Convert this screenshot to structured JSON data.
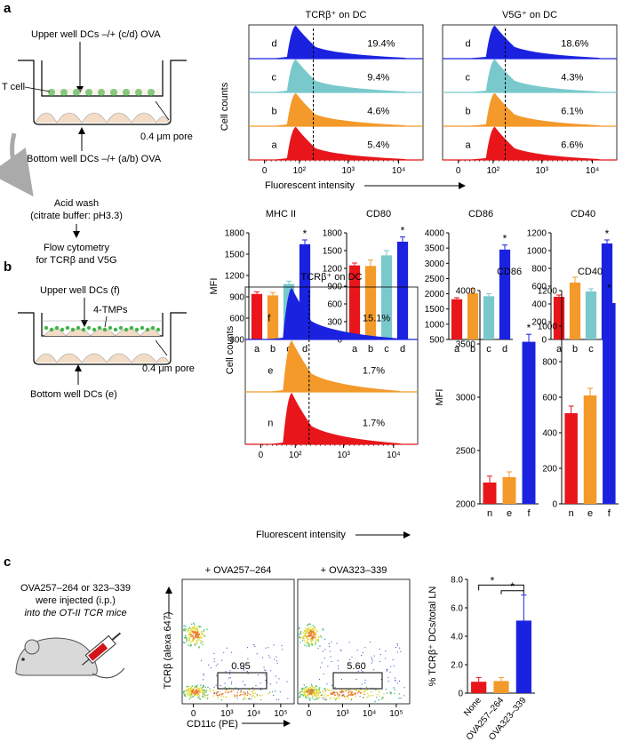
{
  "panel_labels": [
    "a",
    "b",
    "c"
  ],
  "colors": {
    "a": "#e8161b",
    "b": "#f39a2b",
    "c": "#79c9cc",
    "d": "#1a22e0",
    "e": "#f39a2b",
    "f": "#1a22e0",
    "n": "#e8161b"
  },
  "panel_a": {
    "diagram": {
      "upper_label": "Upper well DCs –/+ (c/d) OVA",
      "tcell_label": "T cell",
      "pore_label": "0.4 μm pore",
      "bottom_label": "Bottom well DCs –/+ (a/b) OVA",
      "step1": [
        "Acid wash",
        "(citrate buffer: pH3.3)"
      ],
      "step2": [
        "Flow cytometry",
        "for TCRβ and V5G"
      ]
    },
    "histograms": {
      "ylabel": "Cell counts",
      "xlabel": "Fluorescent intensity",
      "x_ticks": [
        "0",
        "10²",
        "10³",
        "10⁴"
      ],
      "panels": [
        {
          "title": "TCRβ⁺ on DC",
          "rows": [
            {
              "label": "d",
              "pct": "19.4%"
            },
            {
              "label": "c",
              "pct": "9.4%"
            },
            {
              "label": "b",
              "pct": "4.6%"
            },
            {
              "label": "a",
              "pct": "5.4%"
            }
          ]
        },
        {
          "title": "V5G⁺ on DC",
          "rows": [
            {
              "label": "d",
              "pct": "18.6%"
            },
            {
              "label": "c",
              "pct": "4.3%"
            },
            {
              "label": "b",
              "pct": "6.1%"
            },
            {
              "label": "a",
              "pct": "6.6%"
            }
          ]
        }
      ]
    },
    "bar_ylabel": "MFI"
  },
  "panel_b": {
    "diagram": {
      "upper_label": "Upper well DCs (f)",
      "tmp_label": "4-TMPs",
      "pore_label": "0.4 μm pore",
      "bottom_label": "Bottom well DCs (e)"
    },
    "histogram": {
      "title": "TCRβ⁺ on DC",
      "ylabel": "Cell counts",
      "xlabel": "Fluorescent intensity",
      "x_ticks": [
        "0",
        "10²",
        "10³",
        "10⁴"
      ],
      "rows": [
        {
          "label": "f",
          "pct": "15.1%"
        },
        {
          "label": "e",
          "pct": "1.7%"
        },
        {
          "label": "n",
          "pct": "1.7%"
        }
      ]
    },
    "bar_ylabel": "MFI"
  },
  "panel_c": {
    "injection_text": [
      "OVA257–264 or 323–339",
      "were injected (i.p.)",
      "into the OT-II TCR mice"
    ],
    "flow": {
      "ylabel": "TCRβ (alexa 647)",
      "xlabel": "CD11c (PE)",
      "x_ticks": [
        "0",
        "10³",
        "10⁴",
        "10⁵"
      ],
      "plots": [
        {
          "title": "+ OVA257–264",
          "gate_value": "0.95"
        },
        {
          "title": "+ OVA323–339",
          "gate_value": "5.60"
        }
      ]
    }
  },
  "chart_data": [
    {
      "type": "bar",
      "title": "MHC II",
      "ylabel": "MFI",
      "categories": [
        "a",
        "b",
        "c",
        "d"
      ],
      "values": [
        940,
        920,
        1080,
        1640
      ],
      "errors": [
        30,
        40,
        40,
        60
      ],
      "ylim": [
        300,
        1800
      ],
      "yticks": [
        300,
        600,
        900,
        1200,
        1500,
        1800
      ],
      "significance": [
        "",
        "",
        "",
        "*"
      ]
    },
    {
      "type": "bar",
      "title": "CD80",
      "ylabel": "",
      "categories": [
        "a",
        "b",
        "c",
        "d"
      ],
      "values": [
        1250,
        1240,
        1420,
        1650
      ],
      "errors": [
        40,
        100,
        80,
        80
      ],
      "ylim": [
        0,
        1800
      ],
      "yticks": [
        0,
        300,
        600,
        900,
        1200,
        1500,
        1800
      ],
      "significance": [
        "",
        "",
        "",
        "*"
      ]
    },
    {
      "type": "bar",
      "title": "CD86",
      "ylabel": "",
      "categories": [
        "a",
        "b",
        "c",
        "d"
      ],
      "values": [
        1820,
        2020,
        1920,
        3450
      ],
      "errors": [
        50,
        150,
        80,
        150
      ],
      "ylim": [
        500,
        4000
      ],
      "yticks": [
        500,
        1000,
        1500,
        2000,
        2500,
        3000,
        3500,
        4000
      ],
      "significance": [
        "",
        "",
        "",
        "*"
      ]
    },
    {
      "type": "bar",
      "title": "CD40",
      "ylabel": "",
      "categories": [
        "a",
        "b",
        "c",
        "d"
      ],
      "values": [
        480,
        640,
        540,
        1080
      ],
      "errors": [
        20,
        60,
        30,
        40
      ],
      "ylim": [
        0,
        1200
      ],
      "yticks": [
        0,
        200,
        400,
        600,
        800,
        1000,
        1200
      ],
      "significance": [
        "",
        "",
        "",
        "*"
      ]
    },
    {
      "type": "bar",
      "title": "CD86",
      "ylabel": "MFI",
      "categories": [
        "n",
        "e",
        "f"
      ],
      "values": [
        2200,
        2250,
        3520
      ],
      "errors": [
        60,
        50,
        70
      ],
      "ylim": [
        2000,
        4000
      ],
      "yticks": [
        2000,
        2500,
        3000,
        3500,
        4000
      ],
      "significance": [
        "",
        "",
        "*"
      ]
    },
    {
      "type": "bar",
      "title": "CD40",
      "ylabel": "",
      "categories": [
        "n",
        "e",
        "f"
      ],
      "values": [
        510,
        610,
        1130
      ],
      "errors": [
        40,
        40,
        50
      ],
      "ylim": [
        0,
        1200
      ],
      "yticks": [
        0,
        200,
        400,
        600,
        800,
        1000,
        1200
      ],
      "significance": [
        "",
        "",
        "*"
      ]
    },
    {
      "type": "bar",
      "title": "",
      "ylabel": "% TCRβ⁺ DCs/total LN",
      "categories": [
        "None",
        "OVA257–264",
        "OVA323–339"
      ],
      "values": [
        0.8,
        0.85,
        5.1
      ],
      "errors": [
        0.3,
        0.25,
        1.8
      ],
      "ylim": [
        0,
        8
      ],
      "yticks": [
        0,
        2,
        4,
        6,
        8
      ],
      "yticklabels": [
        "0",
        "2.0",
        "4.0",
        "6.0",
        "8.0"
      ],
      "significance_brackets": [
        "*",
        "*"
      ]
    }
  ]
}
